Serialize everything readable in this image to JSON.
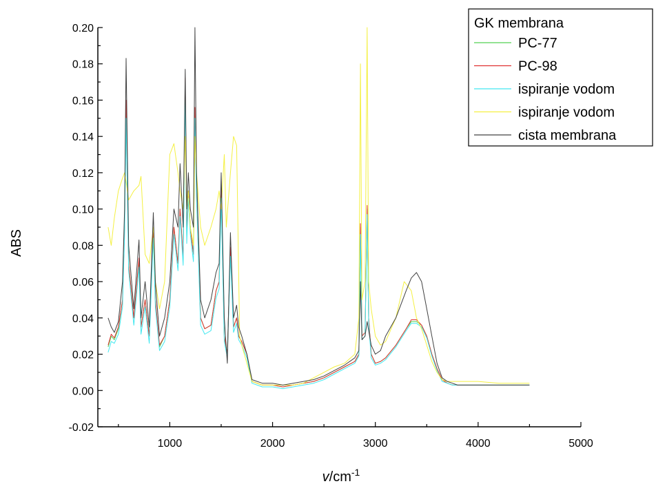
{
  "chart_data": {
    "type": "line",
    "ylabel": "ABS",
    "xlabel_var": "v",
    "xlabel_unit": "/cm",
    "xlabel_sup": "-1",
    "xlim": [
      300,
      5000
    ],
    "ylim": [
      -0.02,
      0.2
    ],
    "x_ticks": [
      1000,
      2000,
      3000,
      4000,
      5000
    ],
    "x_tick_labels": [
      "1000",
      "2000",
      "3000",
      "4000",
      "5000"
    ],
    "y_ticks": [
      -0.02,
      0.0,
      0.02,
      0.04,
      0.06,
      0.08,
      0.1,
      0.12,
      0.14,
      0.16,
      0.18,
      0.2
    ],
    "y_tick_labels": [
      "-0.02",
      "0.00",
      "0.02",
      "0.04",
      "0.06",
      "0.08",
      "0.10",
      "0.12",
      "0.14",
      "0.16",
      "0.18",
      "0.20"
    ],
    "legend": {
      "title": "GK membrana",
      "position": "top-right"
    },
    "grid": false,
    "series": [
      {
        "name": "PC-77",
        "color": "#50d050",
        "x": [
          400,
          430,
          460,
          500,
          540,
          560,
          575,
          600,
          650,
          700,
          720,
          760,
          800,
          840,
          860,
          900,
          950,
          1000,
          1040,
          1080,
          1100,
          1130,
          1150,
          1165,
          1180,
          1200,
          1230,
          1245,
          1260,
          1300,
          1340,
          1400,
          1450,
          1480,
          1500,
          1530,
          1560,
          1590,
          1620,
          1650,
          1670,
          1700,
          1750,
          1800,
          1900,
          2000,
          2100,
          2200,
          2300,
          2400,
          2500,
          2600,
          2700,
          2800,
          2840,
          2855,
          2870,
          2900,
          2920,
          2935,
          2960,
          3000,
          3050,
          3100,
          3200,
          3300,
          3350,
          3400,
          3450,
          3500,
          3550,
          3600,
          3650,
          3700,
          3750,
          3800,
          3900,
          4000,
          4200,
          4400,
          4500
        ],
        "y": [
          0.024,
          0.03,
          0.028,
          0.034,
          0.05,
          0.09,
          0.158,
          0.07,
          0.04,
          0.072,
          0.035,
          0.05,
          0.03,
          0.088,
          0.05,
          0.024,
          0.03,
          0.05,
          0.09,
          0.07,
          0.1,
          0.072,
          0.17,
          0.085,
          0.11,
          0.09,
          0.075,
          0.155,
          0.11,
          0.04,
          0.034,
          0.036,
          0.055,
          0.06,
          0.11,
          0.03,
          0.02,
          0.078,
          0.035,
          0.04,
          0.03,
          0.027,
          0.02,
          0.005,
          0.003,
          0.003,
          0.002,
          0.003,
          0.004,
          0.005,
          0.007,
          0.01,
          0.013,
          0.016,
          0.02,
          0.09,
          0.03,
          0.032,
          0.1,
          0.04,
          0.02,
          0.015,
          0.016,
          0.018,
          0.025,
          0.034,
          0.038,
          0.038,
          0.036,
          0.03,
          0.02,
          0.012,
          0.006,
          0.004,
          0.003,
          0.003,
          0.003,
          0.003,
          0.003,
          0.003,
          0.003
        ]
      },
      {
        "name": "PC-98",
        "color": "#e03030",
        "x": [
          400,
          430,
          460,
          500,
          540,
          560,
          575,
          600,
          650,
          700,
          720,
          760,
          800,
          840,
          860,
          900,
          950,
          1000,
          1040,
          1080,
          1100,
          1130,
          1150,
          1165,
          1180,
          1200,
          1230,
          1245,
          1260,
          1300,
          1340,
          1400,
          1450,
          1480,
          1500,
          1530,
          1560,
          1590,
          1620,
          1650,
          1670,
          1700,
          1750,
          1800,
          1900,
          2000,
          2100,
          2200,
          2300,
          2400,
          2500,
          2600,
          2700,
          2800,
          2840,
          2855,
          2870,
          2900,
          2920,
          2935,
          2960,
          3000,
          3050,
          3100,
          3200,
          3300,
          3350,
          3400,
          3450,
          3500,
          3550,
          3600,
          3650,
          3700,
          3750,
          3800,
          3900,
          4000,
          4200,
          4400,
          4500
        ],
        "y": [
          0.025,
          0.031,
          0.029,
          0.035,
          0.05,
          0.09,
          0.16,
          0.07,
          0.04,
          0.073,
          0.035,
          0.05,
          0.03,
          0.089,
          0.05,
          0.025,
          0.03,
          0.05,
          0.09,
          0.07,
          0.1,
          0.073,
          0.172,
          0.086,
          0.11,
          0.09,
          0.075,
          0.156,
          0.11,
          0.04,
          0.034,
          0.036,
          0.055,
          0.06,
          0.112,
          0.03,
          0.02,
          0.079,
          0.035,
          0.04,
          0.03,
          0.027,
          0.02,
          0.005,
          0.003,
          0.003,
          0.002,
          0.003,
          0.004,
          0.005,
          0.007,
          0.01,
          0.013,
          0.016,
          0.02,
          0.092,
          0.03,
          0.032,
          0.102,
          0.04,
          0.02,
          0.015,
          0.016,
          0.018,
          0.025,
          0.034,
          0.039,
          0.039,
          0.036,
          0.03,
          0.02,
          0.012,
          0.006,
          0.004,
          0.003,
          0.003,
          0.003,
          0.003,
          0.003,
          0.003,
          0.003
        ]
      },
      {
        "name": "ispiranje vodom",
        "color": "#40e8f0",
        "x": [
          400,
          430,
          460,
          500,
          540,
          560,
          575,
          600,
          650,
          700,
          720,
          760,
          800,
          840,
          860,
          900,
          950,
          1000,
          1040,
          1080,
          1100,
          1130,
          1150,
          1165,
          1180,
          1200,
          1230,
          1245,
          1260,
          1300,
          1340,
          1400,
          1450,
          1480,
          1500,
          1530,
          1560,
          1590,
          1620,
          1650,
          1670,
          1700,
          1750,
          1800,
          1900,
          2000,
          2100,
          2200,
          2300,
          2400,
          2500,
          2600,
          2700,
          2800,
          2840,
          2855,
          2870,
          2900,
          2920,
          2935,
          2960,
          3000,
          3050,
          3100,
          3200,
          3300,
          3350,
          3400,
          3450,
          3500,
          3550,
          3600,
          3650,
          3700,
          3750,
          3800,
          3900,
          4000,
          4200,
          4400,
          4500
        ],
        "y": [
          0.021,
          0.027,
          0.026,
          0.031,
          0.046,
          0.086,
          0.15,
          0.066,
          0.036,
          0.068,
          0.031,
          0.046,
          0.026,
          0.084,
          0.046,
          0.022,
          0.027,
          0.046,
          0.086,
          0.066,
          0.096,
          0.069,
          0.165,
          0.081,
          0.106,
          0.086,
          0.071,
          0.15,
          0.106,
          0.036,
          0.031,
          0.033,
          0.051,
          0.056,
          0.106,
          0.027,
          0.018,
          0.074,
          0.032,
          0.037,
          0.028,
          0.025,
          0.018,
          0.004,
          0.002,
          0.002,
          0.001,
          0.002,
          0.003,
          0.004,
          0.006,
          0.009,
          0.012,
          0.015,
          0.019,
          0.086,
          0.028,
          0.03,
          0.097,
          0.037,
          0.018,
          0.014,
          0.015,
          0.017,
          0.024,
          0.033,
          0.037,
          0.037,
          0.035,
          0.029,
          0.019,
          0.011,
          0.005,
          0.004,
          0.003,
          0.003,
          0.003,
          0.003,
          0.003,
          0.003,
          0.003
        ]
      },
      {
        "name": "ispiranje vodom",
        "color": "#f4f040",
        "x": [
          400,
          430,
          460,
          500,
          540,
          560,
          575,
          600,
          650,
          700,
          720,
          760,
          800,
          840,
          860,
          900,
          950,
          1000,
          1040,
          1080,
          1100,
          1130,
          1150,
          1165,
          1180,
          1200,
          1230,
          1245,
          1260,
          1300,
          1340,
          1400,
          1450,
          1480,
          1500,
          1530,
          1550,
          1590,
          1620,
          1650,
          1680,
          1700,
          1750,
          1800,
          1900,
          2000,
          2100,
          2200,
          2300,
          2400,
          2500,
          2600,
          2700,
          2800,
          2840,
          2855,
          2870,
          2900,
          2920,
          2935,
          2960,
          3000,
          3050,
          3100,
          3200,
          3280,
          3350,
          3400,
          3450,
          3500,
          3550,
          3600,
          3650,
          3700,
          3750,
          3800,
          3900,
          4000,
          4200,
          4400,
          4500
        ],
        "y": [
          0.09,
          0.08,
          0.095,
          0.11,
          0.117,
          0.12,
          0.115,
          0.105,
          0.11,
          0.113,
          0.118,
          0.075,
          0.07,
          0.09,
          0.06,
          0.045,
          0.06,
          0.13,
          0.136,
          0.12,
          0.11,
          0.1,
          0.14,
          0.1,
          0.11,
          0.09,
          0.08,
          0.14,
          0.12,
          0.09,
          0.08,
          0.09,
          0.1,
          0.11,
          0.1,
          0.13,
          0.09,
          0.12,
          0.14,
          0.135,
          0.03,
          0.025,
          0.015,
          0.005,
          0.003,
          0.003,
          0.003,
          0.003,
          0.004,
          0.007,
          0.01,
          0.013,
          0.015,
          0.02,
          0.04,
          0.18,
          0.05,
          0.06,
          0.2,
          0.06,
          0.045,
          0.03,
          0.025,
          0.027,
          0.04,
          0.06,
          0.055,
          0.04,
          0.034,
          0.025,
          0.016,
          0.01,
          0.006,
          0.005,
          0.005,
          0.005,
          0.005,
          0.005,
          0.004,
          0.004,
          0.004
        ]
      },
      {
        "name": "cista membrana",
        "color": "#404040",
        "x": [
          400,
          430,
          460,
          500,
          540,
          560,
          575,
          600,
          650,
          700,
          720,
          760,
          800,
          840,
          860,
          900,
          950,
          1000,
          1040,
          1080,
          1100,
          1130,
          1150,
          1165,
          1180,
          1200,
          1230,
          1245,
          1260,
          1300,
          1340,
          1400,
          1450,
          1480,
          1500,
          1530,
          1560,
          1590,
          1620,
          1650,
          1670,
          1700,
          1750,
          1800,
          1900,
          2000,
          2100,
          2200,
          2300,
          2400,
          2500,
          2600,
          2700,
          2800,
          2840,
          2855,
          2870,
          2900,
          2920,
          2935,
          2960,
          3000,
          3050,
          3100,
          3200,
          3300,
          3350,
          3400,
          3450,
          3500,
          3550,
          3600,
          3650,
          3700,
          3750,
          3800,
          3900,
          4000,
          4200,
          4400,
          4500
        ],
        "y": [
          0.04,
          0.035,
          0.032,
          0.038,
          0.06,
          0.1,
          0.183,
          0.08,
          0.045,
          0.083,
          0.04,
          0.06,
          0.035,
          0.098,
          0.06,
          0.03,
          0.04,
          0.06,
          0.1,
          0.09,
          0.125,
          0.09,
          0.177,
          0.1,
          0.12,
          0.1,
          0.09,
          0.2,
          0.12,
          0.05,
          0.04,
          0.05,
          0.065,
          0.07,
          0.12,
          0.04,
          0.015,
          0.087,
          0.04,
          0.047,
          0.035,
          0.03,
          0.02,
          0.006,
          0.004,
          0.004,
          0.003,
          0.004,
          0.005,
          0.006,
          0.008,
          0.011,
          0.014,
          0.018,
          0.022,
          0.06,
          0.028,
          0.03,
          0.038,
          0.033,
          0.025,
          0.02,
          0.022,
          0.03,
          0.04,
          0.055,
          0.062,
          0.065,
          0.06,
          0.045,
          0.03,
          0.015,
          0.007,
          0.005,
          0.004,
          0.003,
          0.003,
          0.003,
          0.003,
          0.003,
          0.003
        ]
      }
    ]
  }
}
